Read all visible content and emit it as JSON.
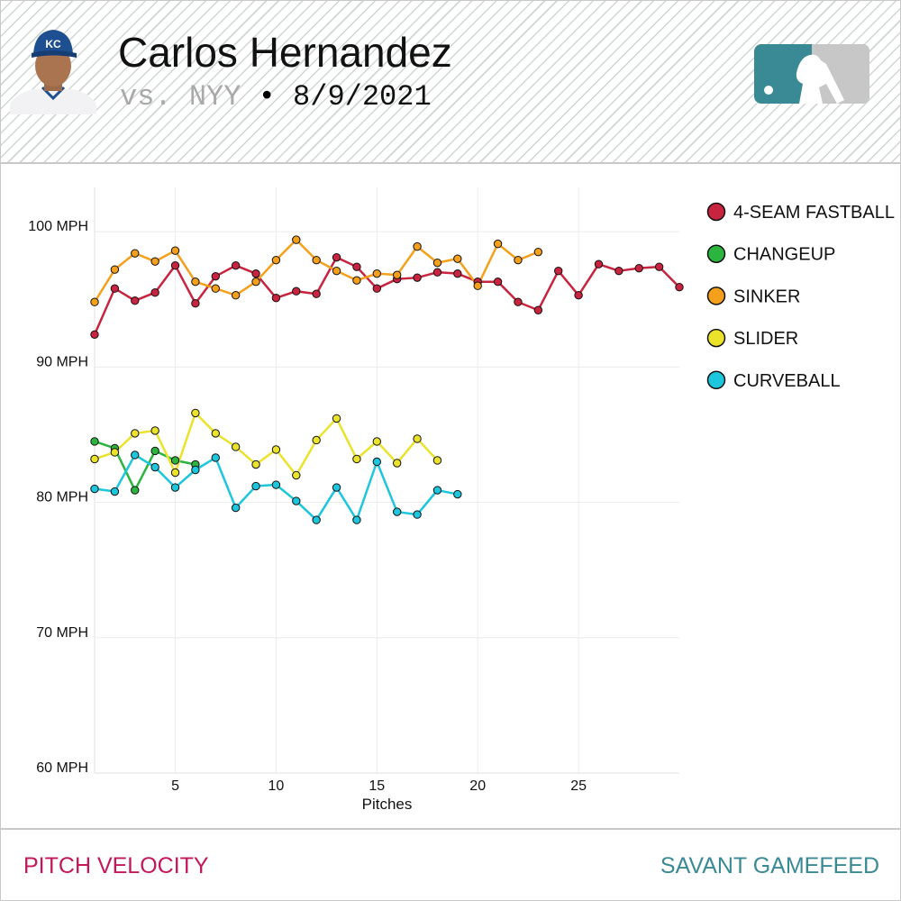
{
  "header": {
    "player_name": "Carlos Hernandez",
    "opponent": "vs. NYY",
    "separator": " • ",
    "date": "8/9/2021",
    "team_cap_letters": "KC"
  },
  "footer": {
    "left_label": "PITCH VELOCITY",
    "right_label": "SAVANT GAMEFEED"
  },
  "colors": {
    "footer_left": "#c2185b",
    "footer_right": "#3a8a95",
    "mlb_logo": "#3a8a95"
  },
  "chart_data": {
    "type": "line",
    "xlabel": "Pitches",
    "ylabel": "",
    "xlim": [
      1,
      30
    ],
    "ylim": [
      60,
      105
    ],
    "x_ticks": [
      5,
      10,
      15,
      20,
      25
    ],
    "y_ticks": [
      60,
      70,
      80,
      90,
      100
    ],
    "y_tick_suffix": " MPH",
    "grid": true,
    "legend_position": "right",
    "series": [
      {
        "name": "4-SEAM FASTBALL",
        "color": "#c8233f",
        "values": [
          92.4,
          95.8,
          94.9,
          95.5,
          97.5,
          94.7,
          96.7,
          97.5,
          96.9,
          95.1,
          95.6,
          95.4,
          98.1,
          97.4,
          95.8,
          96.5,
          96.6,
          97.0,
          96.9,
          96.3,
          96.3,
          94.8,
          94.2,
          97.1,
          95.3,
          97.6,
          97.1,
          97.3,
          97.4,
          95.9
        ]
      },
      {
        "name": "CHANGEUP",
        "color": "#2bb53f",
        "values": [
          84.5,
          84.0,
          80.9,
          83.8,
          83.1,
          82.8
        ]
      },
      {
        "name": "SINKER",
        "color": "#f5a01a",
        "values": [
          94.8,
          97.2,
          98.4,
          97.8,
          98.6,
          96.3,
          95.8,
          95.3,
          96.3,
          97.9,
          99.4,
          97.9,
          97.1,
          96.4,
          96.9,
          96.8,
          98.9,
          97.7,
          98.0,
          96.0,
          99.1,
          97.9,
          98.5
        ]
      },
      {
        "name": "SLIDER",
        "color": "#ebe22a",
        "values": [
          83.2,
          83.7,
          85.1,
          85.3,
          82.2,
          86.6,
          85.1,
          84.1,
          82.8,
          83.9,
          82.0,
          84.6,
          86.2,
          83.2,
          84.5,
          82.9,
          84.7,
          83.1
        ]
      },
      {
        "name": "CURVEBALL",
        "color": "#1cc6dc",
        "values": [
          81.0,
          80.8,
          83.5,
          82.6,
          81.1,
          82.4,
          83.3,
          79.6,
          81.2,
          81.3,
          80.1,
          78.7,
          81.1,
          78.7,
          83.0,
          79.3,
          79.1,
          80.9,
          80.6
        ]
      }
    ]
  }
}
